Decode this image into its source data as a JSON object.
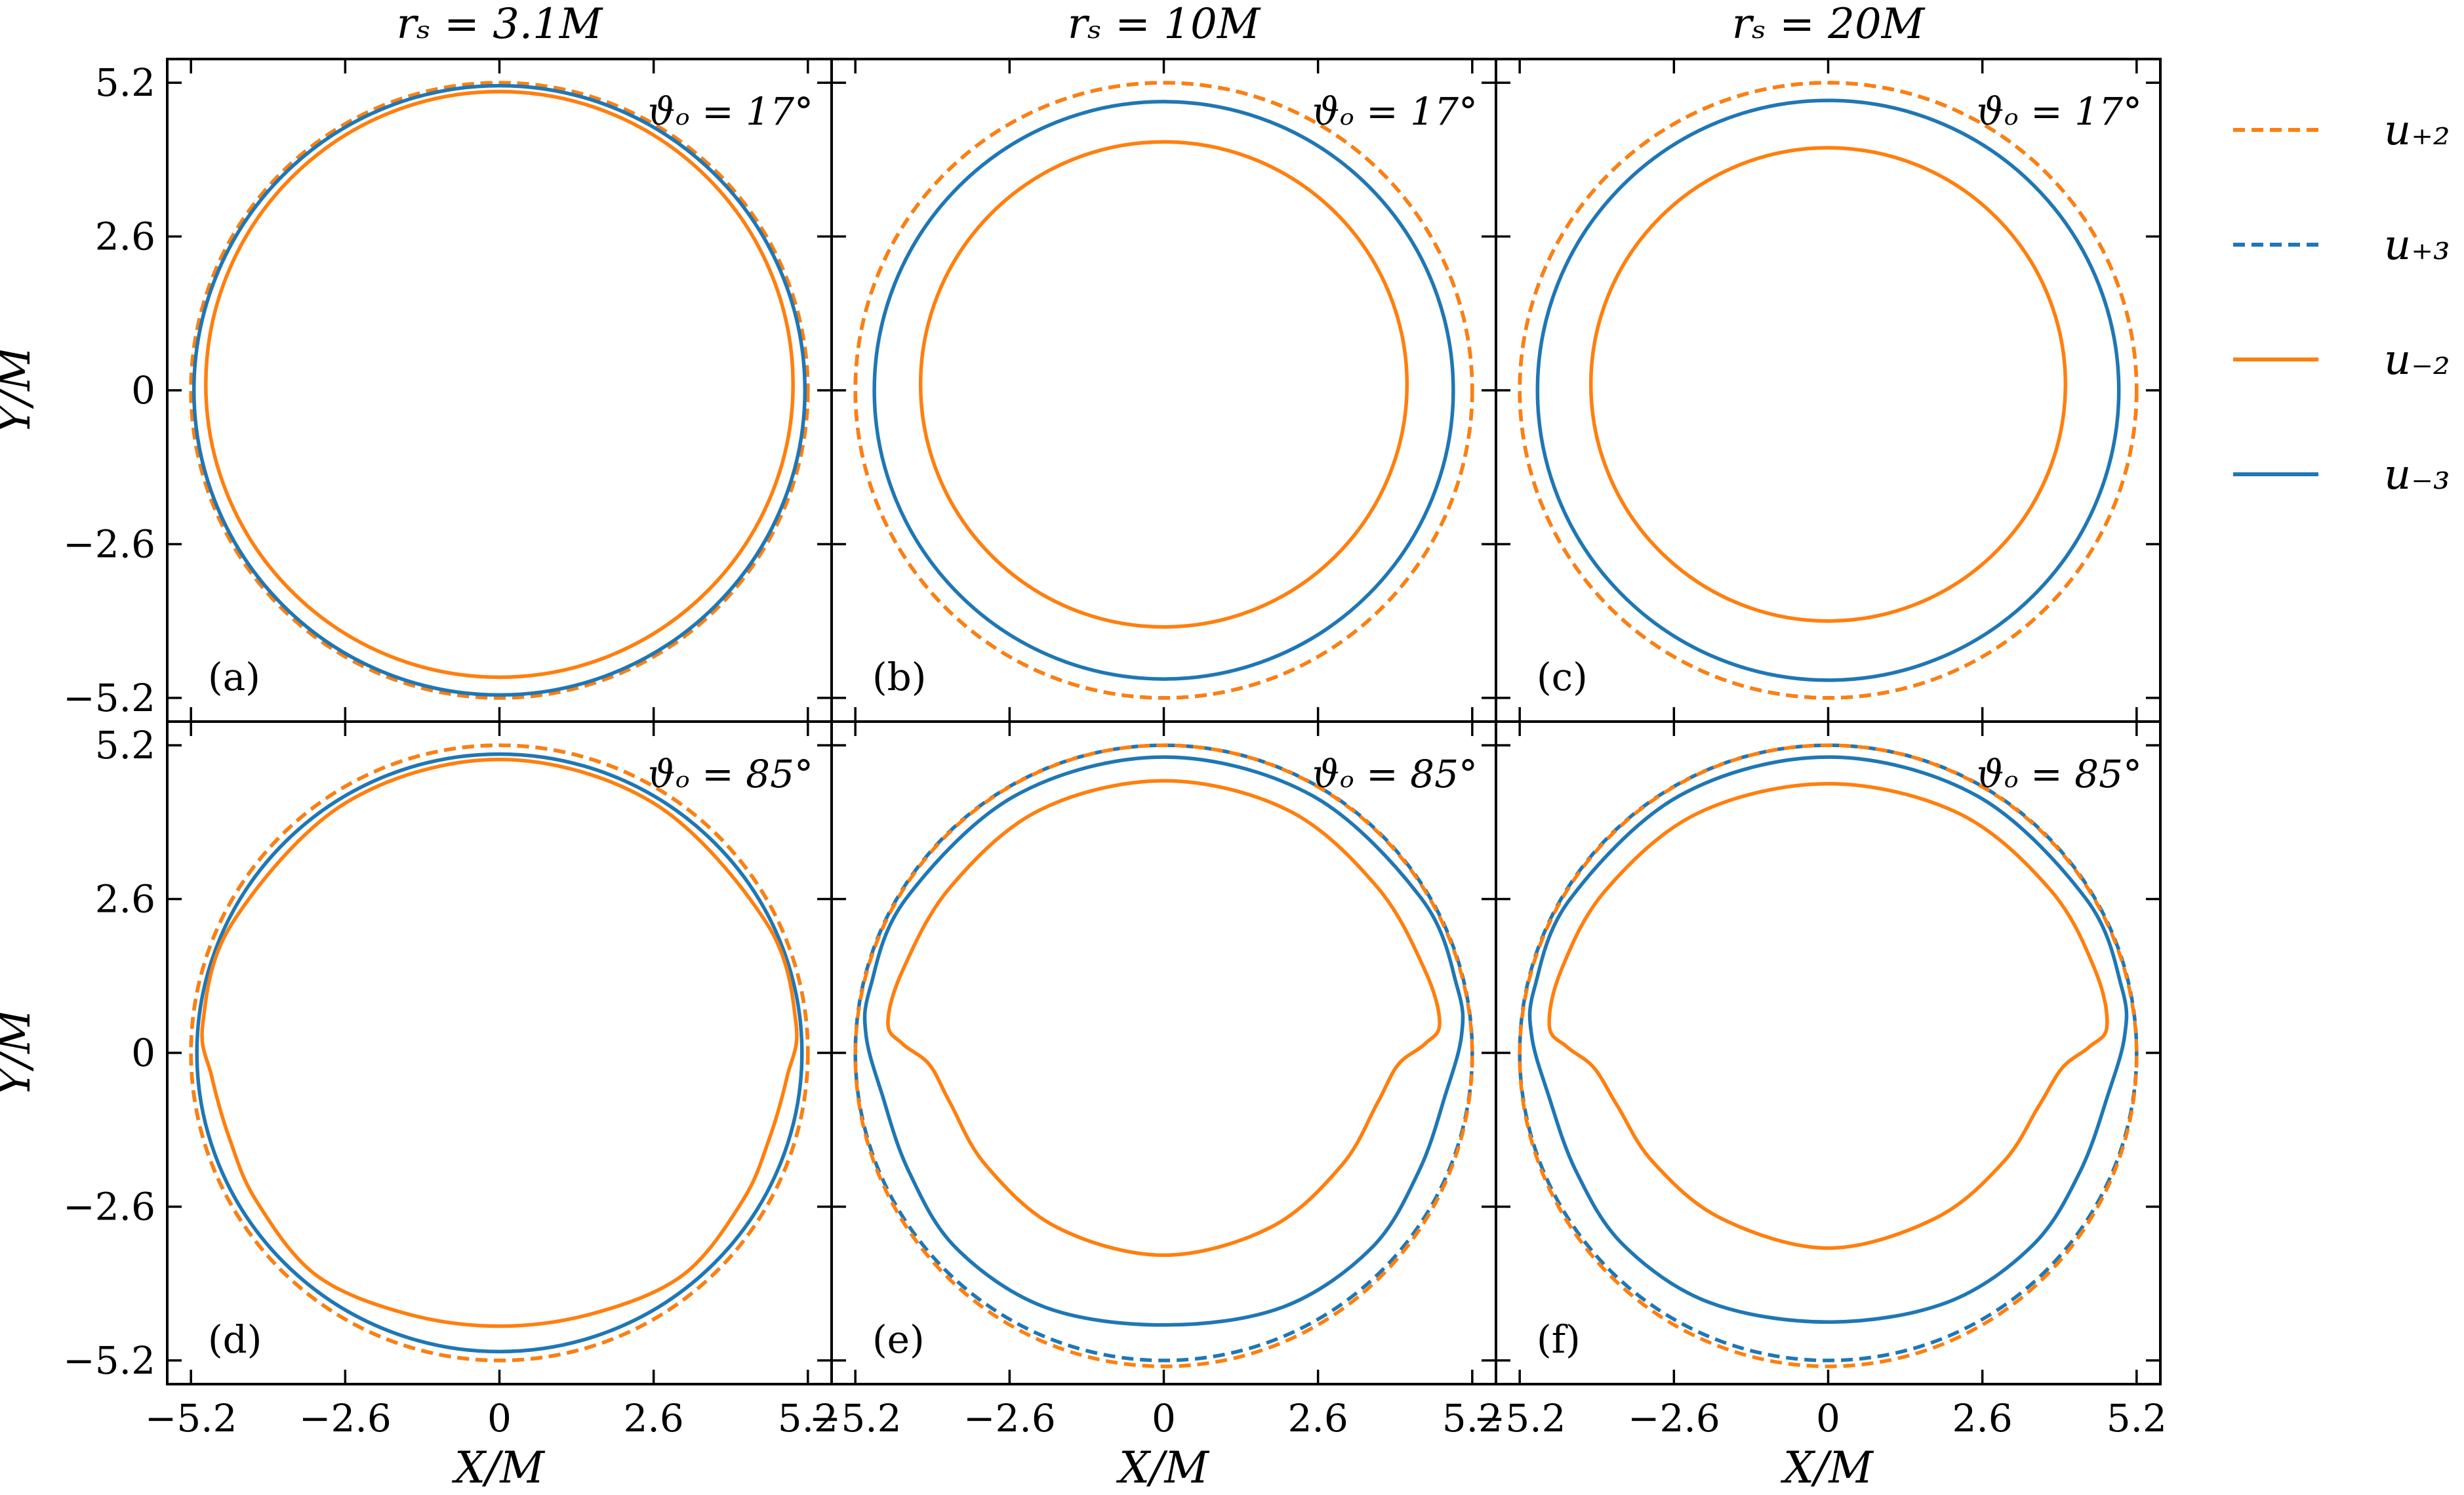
{
  "chart_data": {
    "type": "line",
    "layout": "2x3 grid",
    "column_titles": [
      "rₛ = 3.1M",
      "rₛ = 10M",
      "rₛ = 20M"
    ],
    "row_titles": [
      "ϑₒ = 17°",
      "ϑₒ = 85°"
    ],
    "xlabel": "X/M",
    "ylabel": "Y/M",
    "xlim": [
      -5.6,
      5.6
    ],
    "ylim": [
      -5.6,
      5.6
    ],
    "xticks": [
      -5.2,
      -2.6,
      0,
      2.6,
      5.2
    ],
    "yticks": [
      -5.2,
      -2.6,
      0,
      2.6,
      5.2
    ],
    "xtick_labels": [
      "−5.2",
      "−2.6",
      "0",
      "2.6",
      "5.2"
    ],
    "ytick_labels": [
      "−5.2",
      "−2.6",
      "0",
      "2.6",
      "5.2"
    ],
    "grid": false,
    "legend_position": "outside right, top",
    "legend": [
      {
        "name": "u₊₂",
        "color": "#ff7f0e",
        "dash": true
      },
      {
        "name": "u₊₃",
        "color": "#1f77b4",
        "dash": true
      },
      {
        "name": "u₋₂",
        "color": "#ff7f0e",
        "dash": false
      },
      {
        "name": "u₋₃",
        "color": "#1f77b4",
        "dash": false
      }
    ],
    "panels": [
      {
        "label": "(a)",
        "inclination": "ϑₒ = 17°",
        "series": [
          {
            "name": "u₊₂",
            "shape": "circle",
            "cx": 0,
            "cy": 0,
            "rx": 5.2,
            "ry": 5.2
          },
          {
            "name": "u₊₃",
            "shape": "circle",
            "cx": 0,
            "cy": 0,
            "rx": 5.2,
            "ry": 5.2
          },
          {
            "name": "u₋₂",
            "shape": "circle",
            "cx": 0,
            "cy": 0.1,
            "rx": 4.95,
            "ry": 4.95
          },
          {
            "name": "u₋₃",
            "shape": "circle",
            "cx": 0,
            "cy": 0,
            "rx": 5.15,
            "ry": 5.15
          }
        ]
      },
      {
        "label": "(b)",
        "inclination": "ϑₒ = 17°",
        "series": [
          {
            "name": "u₊₂",
            "shape": "circle",
            "cx": 0,
            "cy": 0,
            "rx": 5.2,
            "ry": 5.2
          },
          {
            "name": "u₊₃",
            "shape": "circle",
            "cx": 0,
            "cy": 0,
            "rx": 5.2,
            "ry": 5.2
          },
          {
            "name": "u₋₂",
            "shape": "circle",
            "cx": 0,
            "cy": 0.1,
            "rx": 4.1,
            "ry": 4.1
          },
          {
            "name": "u₋₃",
            "shape": "circle",
            "cx": 0,
            "cy": 0,
            "rx": 4.88,
            "ry": 4.88
          }
        ]
      },
      {
        "label": "(c)",
        "inclination": "ϑₒ = 17°",
        "series": [
          {
            "name": "u₊₂",
            "shape": "circle",
            "cx": 0,
            "cy": 0,
            "rx": 5.2,
            "ry": 5.2
          },
          {
            "name": "u₊₃",
            "shape": "circle",
            "cx": 0,
            "cy": 0,
            "rx": 5.2,
            "ry": 5.2
          },
          {
            "name": "u₋₂",
            "shape": "circle",
            "cx": 0,
            "cy": 0.1,
            "rx": 4.0,
            "ry": 4.0
          },
          {
            "name": "u₋₃",
            "shape": "circle",
            "cx": 0,
            "cy": 0,
            "rx": 4.9,
            "ry": 4.9
          }
        ]
      },
      {
        "label": "(d)",
        "inclination": "ϑₒ = 85°",
        "series": [
          {
            "name": "u₊₂",
            "shape": "circle",
            "cx": 0,
            "cy": 0,
            "rx": 5.2,
            "ry": 5.2
          },
          {
            "name": "u₊₃",
            "shape": "circle",
            "cx": 0,
            "cy": 0,
            "rx": 5.2,
            "ry": 5.2
          },
          {
            "name": "u₋₂",
            "shape": "curve",
            "points": [
              [
                0,
                4.96
              ],
              [
                2.6,
                4.22
              ],
              [
                4.5,
                2.2
              ],
              [
                5.0,
                0.5
              ],
              [
                4.85,
                -0.4
              ],
              [
                4.55,
                -1.45
              ],
              [
                4.1,
                -2.5
              ],
              [
                3.1,
                -3.75
              ],
              [
                1.6,
                -4.4
              ],
              [
                0,
                -4.62
              ],
              [
                -1.6,
                -4.4
              ],
              [
                -3.1,
                -3.75
              ],
              [
                -4.1,
                -2.5
              ],
              [
                -4.55,
                -1.45
              ],
              [
                -4.85,
                -0.4
              ],
              [
                -5.0,
                0.5
              ],
              [
                -4.5,
                2.2
              ],
              [
                -2.6,
                4.22
              ]
            ]
          },
          {
            "name": "u₋₃",
            "shape": "circle",
            "cx": 0,
            "cy": 0,
            "rx": 5.1,
            "ry": 5.05
          }
        ]
      },
      {
        "label": "(e)",
        "inclination": "ϑₒ = 85°",
        "series": [
          {
            "name": "u₊₂",
            "shape": "circle",
            "cx": 0,
            "cy": -0.05,
            "rx": 5.2,
            "ry": 5.25
          },
          {
            "name": "u₊₃",
            "shape": "circle",
            "cx": 0,
            "cy": 0,
            "rx": 5.2,
            "ry": 5.2
          },
          {
            "name": "u₋₂",
            "shape": "curve",
            "points": [
              [
                0,
                4.6
              ],
              [
                2.1,
                4.1
              ],
              [
                3.6,
                2.8
              ],
              [
                4.4,
                1.4
              ],
              [
                4.65,
                0.5
              ],
              [
                4.4,
                0.15
              ],
              [
                3.95,
                -0.2
              ],
              [
                3.6,
                -0.85
              ],
              [
                3.0,
                -1.9
              ],
              [
                1.8,
                -2.95
              ],
              [
                0,
                -3.42
              ],
              [
                -1.8,
                -2.95
              ],
              [
                -3.0,
                -1.9
              ],
              [
                -3.6,
                -0.85
              ],
              [
                -3.95,
                -0.2
              ],
              [
                -4.4,
                0.15
              ],
              [
                -4.65,
                0.5
              ],
              [
                -4.4,
                1.4
              ],
              [
                -3.6,
                2.8
              ],
              [
                -2.1,
                4.1
              ]
            ]
          },
          {
            "name": "u₋₃",
            "shape": "curve",
            "points": [
              [
                0,
                5.0
              ],
              [
                2.5,
                4.35
              ],
              [
                4.35,
                2.6
              ],
              [
                4.95,
                1.1
              ],
              [
                5.02,
                0.3
              ],
              [
                4.75,
                -0.7
              ],
              [
                4.3,
                -2.0
              ],
              [
                3.5,
                -3.3
              ],
              [
                2.0,
                -4.3
              ],
              [
                0,
                -4.6
              ],
              [
                -2.0,
                -4.3
              ],
              [
                -3.5,
                -3.3
              ],
              [
                -4.3,
                -2.0
              ],
              [
                -4.75,
                -0.7
              ],
              [
                -5.02,
                0.3
              ],
              [
                -4.95,
                1.1
              ],
              [
                -4.35,
                2.6
              ],
              [
                -2.5,
                4.35
              ]
            ]
          }
        ]
      },
      {
        "label": "(f)",
        "inclination": "ϑₒ = 85°",
        "series": [
          {
            "name": "u₊₂",
            "shape": "circle",
            "cx": 0,
            "cy": -0.05,
            "rx": 5.2,
            "ry": 5.25
          },
          {
            "name": "u₊₃",
            "shape": "circle",
            "cx": 0,
            "cy": 0,
            "rx": 5.2,
            "ry": 5.2
          },
          {
            "name": "u₋₂",
            "shape": "curve",
            "points": [
              [
                0,
                4.55
              ],
              [
                2.2,
                4.05
              ],
              [
                3.75,
                2.75
              ],
              [
                4.5,
                1.4
              ],
              [
                4.7,
                0.45
              ],
              [
                4.4,
                0.1
              ],
              [
                3.95,
                -0.25
              ],
              [
                3.55,
                -0.9
              ],
              [
                2.95,
                -1.85
              ],
              [
                1.8,
                -2.8
              ],
              [
                0,
                -3.3
              ],
              [
                -1.8,
                -2.8
              ],
              [
                -2.95,
                -1.85
              ],
              [
                -3.55,
                -0.9
              ],
              [
                -3.95,
                -0.25
              ],
              [
                -4.4,
                0.1
              ],
              [
                -4.7,
                0.45
              ],
              [
                -4.5,
                1.4
              ],
              [
                -3.75,
                2.75
              ],
              [
                -2.2,
                4.05
              ]
            ]
          },
          {
            "name": "u₋₃",
            "shape": "curve",
            "points": [
              [
                0,
                5.0
              ],
              [
                2.5,
                4.35
              ],
              [
                4.35,
                2.6
              ],
              [
                4.95,
                1.1
              ],
              [
                5.0,
                0.3
              ],
              [
                4.72,
                -0.7
              ],
              [
                4.25,
                -2.0
              ],
              [
                3.45,
                -3.25
              ],
              [
                2.0,
                -4.22
              ],
              [
                0,
                -4.55
              ],
              [
                -2.0,
                -4.22
              ],
              [
                -3.45,
                -3.25
              ],
              [
                -4.25,
                -2.0
              ],
              [
                -4.72,
                -0.7
              ],
              [
                -5.0,
                0.3
              ],
              [
                -4.95,
                1.1
              ],
              [
                -4.35,
                2.6
              ],
              [
                -2.5,
                4.35
              ]
            ]
          }
        ]
      }
    ]
  }
}
